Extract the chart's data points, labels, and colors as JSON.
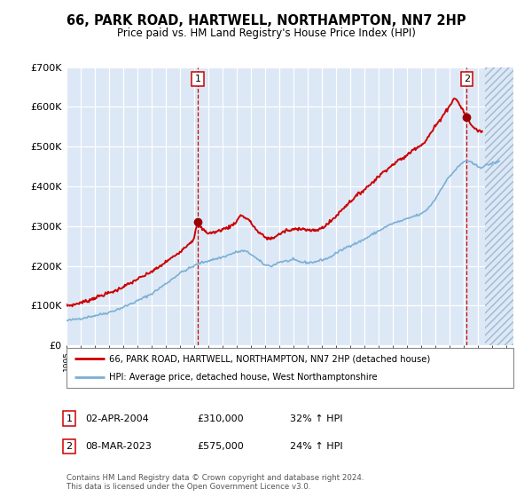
{
  "title": "66, PARK ROAD, HARTWELL, NORTHAMPTON, NN7 2HP",
  "subtitle": "Price paid vs. HM Land Registry's House Price Index (HPI)",
  "plot_bg_color": "#dce8f5",
  "red_line_color": "#cc0000",
  "blue_line_color": "#7bafd4",
  "marker_color": "#990000",
  "annotation1": [
    "1",
    "02-APR-2004",
    "£310,000",
    "32% ↑ HPI"
  ],
  "annotation2": [
    "2",
    "08-MAR-2023",
    "£575,000",
    "24% ↑ HPI"
  ],
  "legend1": "66, PARK ROAD, HARTWELL, NORTHAMPTON, NN7 2HP (detached house)",
  "legend2": "HPI: Average price, detached house, West Northamptonshire",
  "footer": "Contains HM Land Registry data © Crown copyright and database right 2024.\nThis data is licensed under the Open Government Licence v3.0.",
  "ylim": [
    0,
    700000
  ],
  "yticks": [
    0,
    100000,
    200000,
    300000,
    400000,
    500000,
    600000,
    700000
  ],
  "xlim_start": 1995.0,
  "xlim_end": 2026.5,
  "hatch_start": 2024.5,
  "marker1_x": 2004.25,
  "marker1_y": 310000,
  "marker2_x": 2023.2,
  "marker2_y": 575000
}
